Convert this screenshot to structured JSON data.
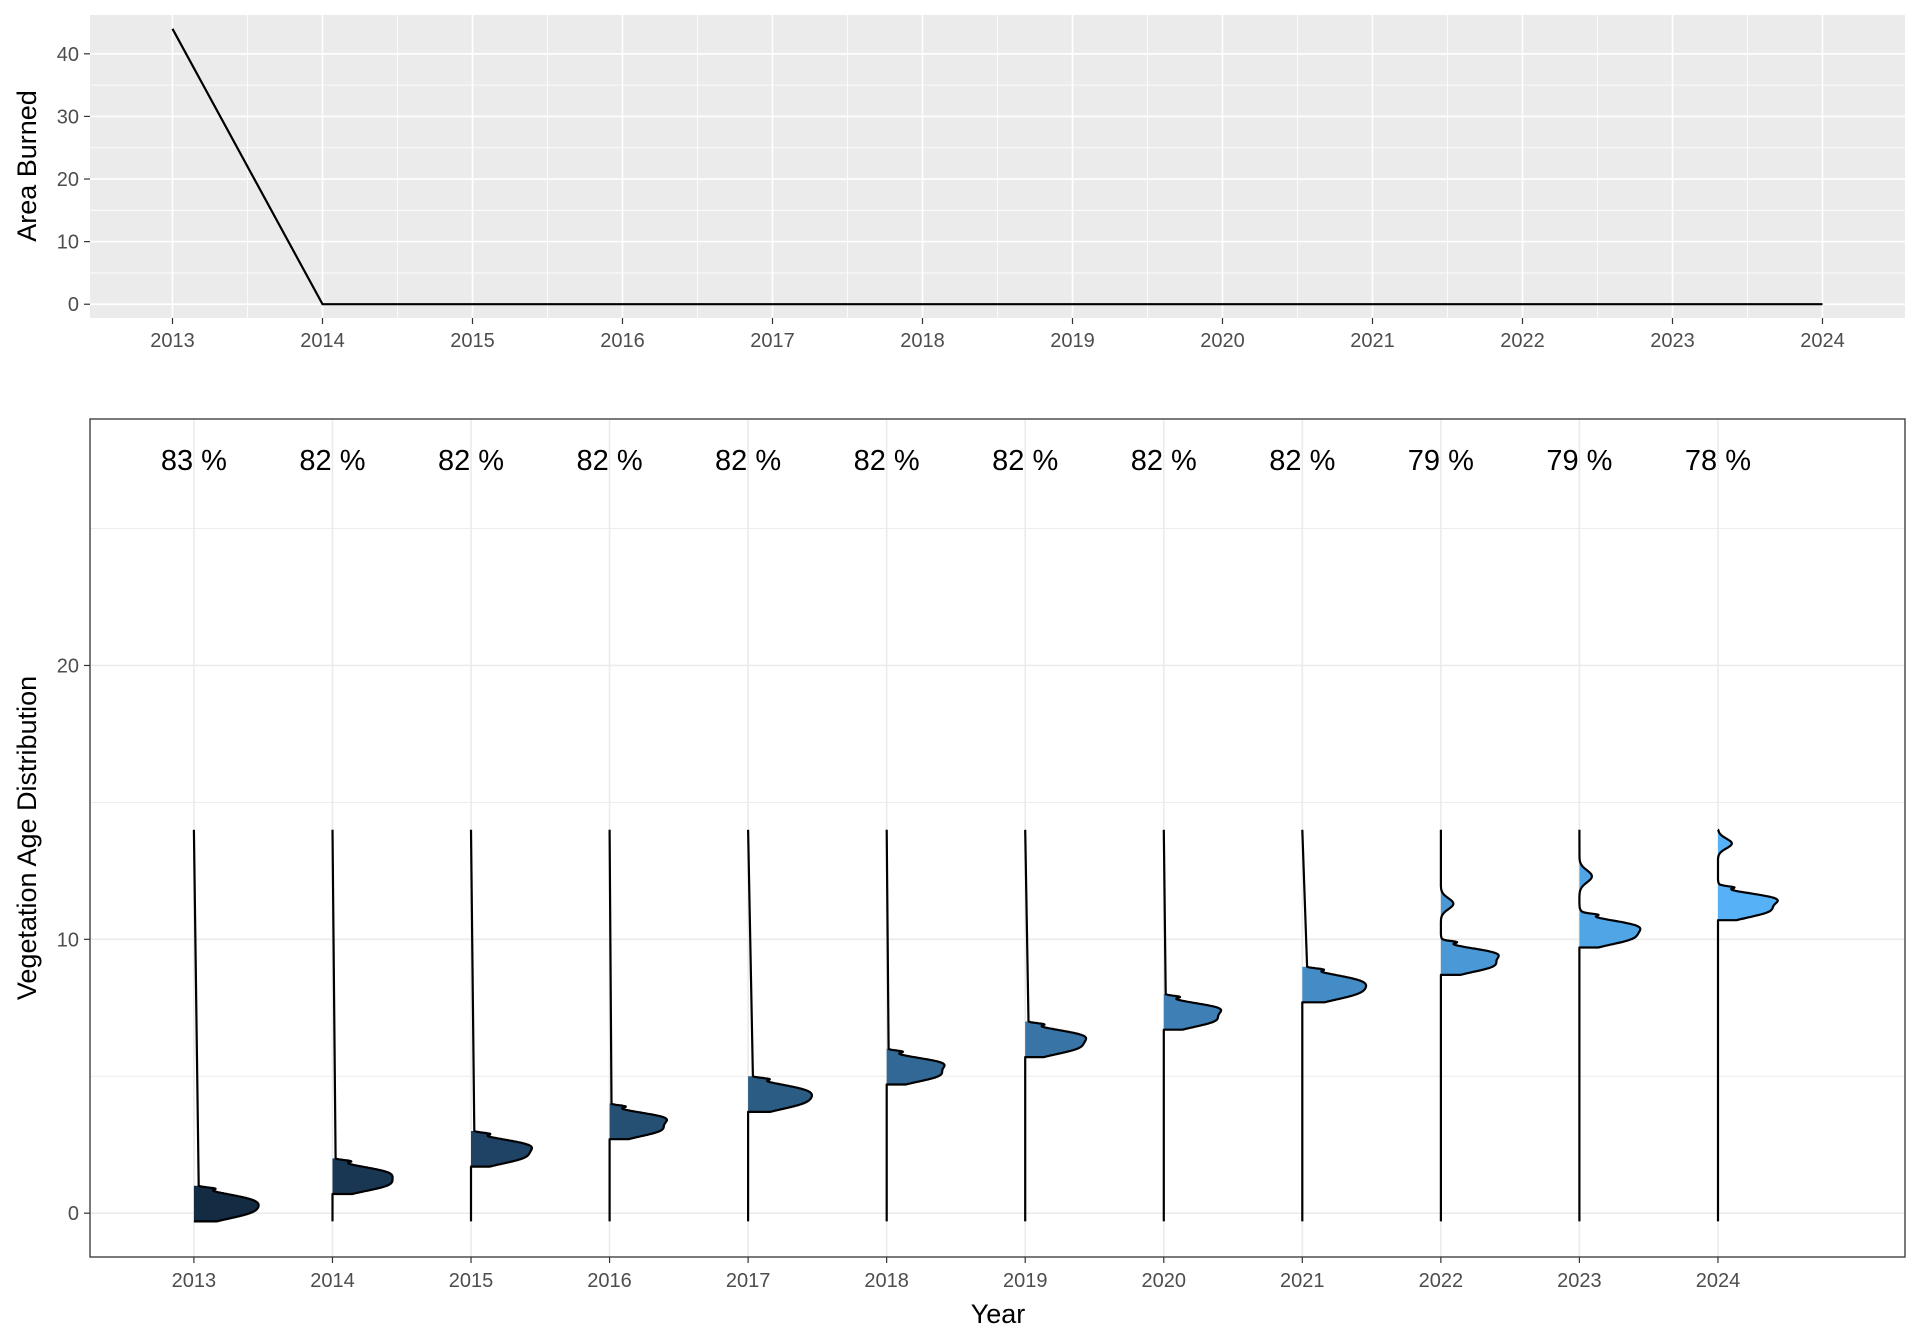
{
  "chart_data": [
    {
      "type": "line",
      "title": "",
      "xlabel": "",
      "ylabel": "Area Burned",
      "x": [
        2013,
        2014,
        2015,
        2016,
        2017,
        2018,
        2019,
        2020,
        2021,
        2022,
        2023,
        2024
      ],
      "x_tick_labels": [
        "2013",
        "2014",
        "2015",
        "2016",
        "2017",
        "2018",
        "2019",
        "2020",
        "2021",
        "2022",
        "2023",
        "2024"
      ],
      "series": [
        {
          "values": [
            44,
            0,
            0,
            0,
            0,
            0,
            0,
            0,
            0,
            0,
            0,
            0
          ]
        }
      ],
      "y_ticks": [
        0,
        10,
        20,
        30,
        40
      ],
      "y_tick_labels": [
        "0",
        "10",
        "20",
        "30",
        "40"
      ],
      "xlim": [
        2012.45,
        2024.55
      ],
      "ylim": [
        -2.2,
        46.2
      ],
      "grid": true,
      "background": "#EBEBEB",
      "line_color": "#000000"
    },
    {
      "type": "area",
      "subtype": "ridgeline-density",
      "title": "",
      "xlabel": "Year",
      "ylabel": "Vegetation Age Distribution",
      "x_tick_labels": [
        "2013",
        "2014",
        "2015",
        "2016",
        "2017",
        "2018",
        "2019",
        "2020",
        "2021",
        "2022",
        "2023",
        "2024"
      ],
      "y_ticks": [
        0,
        10,
        20
      ],
      "y_tick_labels": [
        "0",
        "10",
        "20"
      ],
      "xlim": [
        2012.25,
        2025.35
      ],
      "ylim": [
        -1.6,
        29.0
      ],
      "grid": true,
      "background": "#FFFFFF",
      "fill_gradient": [
        "#132B43",
        "#56B1F7"
      ],
      "vertical_line_range": [
        -0.3,
        14
      ],
      "percent_labels_y": 27.5,
      "series": [
        {
          "year": 2013,
          "label": "83 %",
          "fill_range": [
            -0.3,
            1.0
          ],
          "peaks": [
            [
              0.5,
              0.23,
              0.32
            ],
            [
              0.05,
              0.27,
              0.38
            ],
            [
              0.9,
              0.04,
              0.08
            ]
          ]
        },
        {
          "year": 2014,
          "label": "82 %",
          "fill_range": [
            0.7,
            2.0
          ],
          "peaks": [
            [
              1.5,
              0.21,
              0.32
            ],
            [
              1.05,
              0.25,
              0.38
            ],
            [
              1.9,
              0.04,
              0.08
            ]
          ]
        },
        {
          "year": 2015,
          "label": "82 %",
          "fill_range": [
            1.7,
            3.0
          ],
          "peaks": [
            [
              2.5,
              0.21,
              0.34
            ],
            [
              2.05,
              0.25,
              0.36
            ],
            [
              2.9,
              0.04,
              0.08
            ]
          ]
        },
        {
          "year": 2016,
          "label": "82 %",
          "fill_range": [
            2.7,
            4.0
          ],
          "peaks": [
            [
              3.5,
              0.19,
              0.32
            ],
            [
              3.05,
              0.25,
              0.36
            ],
            [
              3.9,
              0.04,
              0.08
            ]
          ]
        },
        {
          "year": 2017,
          "label": "82 %",
          "fill_range": [
            3.7,
            5.0
          ],
          "peaks": [
            [
              4.5,
              0.23,
              0.32
            ],
            [
              4.05,
              0.27,
              0.37
            ],
            [
              4.9,
              0.04,
              0.08
            ]
          ]
        },
        {
          "year": 2018,
          "label": "82 %",
          "fill_range": [
            4.7,
            6.0
          ],
          "peaks": [
            [
              5.5,
              0.19,
              0.32
            ],
            [
              5.05,
              0.25,
              0.37
            ],
            [
              5.9,
              0.04,
              0.08
            ]
          ]
        },
        {
          "year": 2019,
          "label": "82 %",
          "fill_range": [
            5.7,
            7.0
          ],
          "peaks": [
            [
              6.5,
              0.21,
              0.34
            ],
            [
              6.05,
              0.25,
              0.36
            ],
            [
              6.9,
              0.04,
              0.08
            ]
          ]
        },
        {
          "year": 2020,
          "label": "82 %",
          "fill_range": [
            6.7,
            8.0
          ],
          "peaks": [
            [
              7.5,
              0.19,
              0.32
            ],
            [
              7.05,
              0.25,
              0.36
            ],
            [
              7.9,
              0.04,
              0.08
            ]
          ]
        },
        {
          "year": 2021,
          "label": "82 %",
          "fill_range": [
            7.7,
            9.0
          ],
          "peaks": [
            [
              8.5,
              0.23,
              0.32
            ],
            [
              8.05,
              0.27,
              0.37
            ],
            [
              8.9,
              0.04,
              0.08
            ]
          ]
        },
        {
          "year": 2022,
          "label": "79 %",
          "fill_range": [
            8.7,
            12.0
          ],
          "peaks": [
            [
              9.5,
              0.19,
              0.32
            ],
            [
              9.05,
              0.25,
              0.37
            ],
            [
              9.9,
              0.04,
              0.08
            ],
            [
              11.3,
              0.2,
              0.09
            ]
          ]
        },
        {
          "year": 2023,
          "label": "79 %",
          "fill_range": [
            9.7,
            13.0
          ],
          "peaks": [
            [
              10.5,
              0.21,
              0.34
            ],
            [
              10.05,
              0.25,
              0.36
            ],
            [
              10.9,
              0.04,
              0.08
            ],
            [
              12.3,
              0.22,
              0.09
            ]
          ]
        },
        {
          "year": 2024,
          "label": "78 %",
          "fill_range": [
            10.7,
            14.0
          ],
          "peaks": [
            [
              11.5,
              0.19,
              0.34
            ],
            [
              11.05,
              0.25,
              0.36
            ],
            [
              11.9,
              0.04,
              0.08
            ],
            [
              13.5,
              0.18,
              0.1
            ]
          ]
        }
      ]
    }
  ]
}
